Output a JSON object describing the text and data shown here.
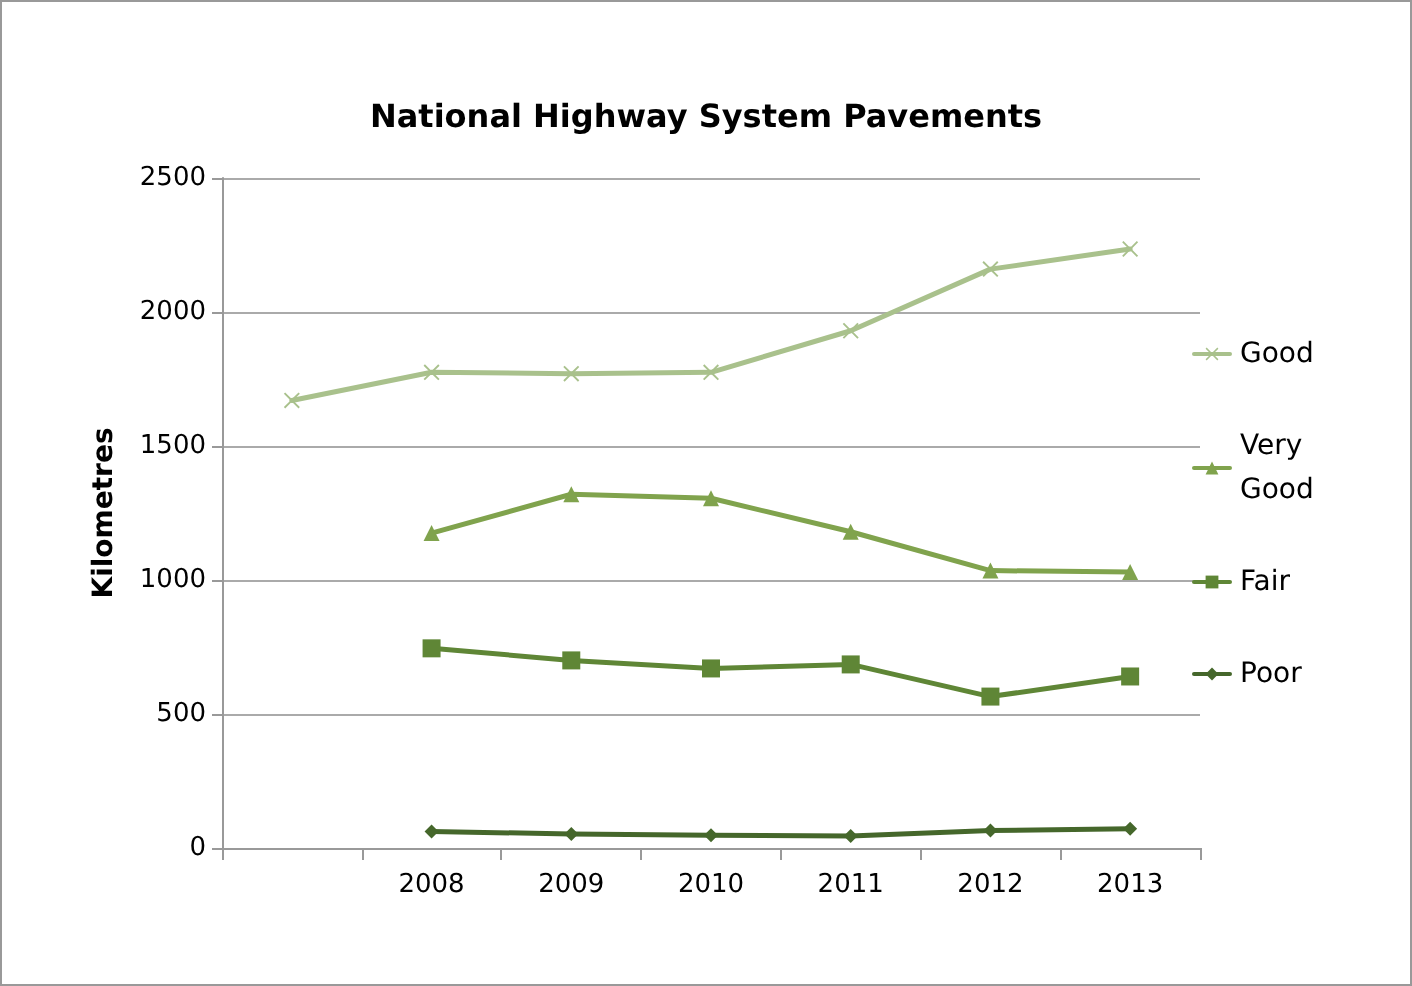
{
  "chart_data": {
    "type": "line",
    "title": "National Highway System Pavements",
    "ylabel": "Kilometres",
    "categories": [
      null,
      "2008",
      "2009",
      "2010",
      "2011",
      "2012",
      "2013"
    ],
    "series": [
      {
        "name": "Good",
        "color": "#a9c18c",
        "marker": "cross",
        "values": [
          1670,
          1775,
          1770,
          1775,
          1930,
          2160,
          2235
        ]
      },
      {
        "name": "Very Good",
        "color": "#80a34d",
        "marker": "triangle",
        "values": [
          null,
          1175,
          1320,
          1305,
          1180,
          1035,
          1030
        ]
      },
      {
        "name": "Fair",
        "color": "#5f8636",
        "marker": "square",
        "values": [
          null,
          745,
          700,
          670,
          685,
          565,
          640
        ]
      },
      {
        "name": "Poor",
        "color": "#45672b",
        "marker": "diamond",
        "values": [
          null,
          62,
          52,
          48,
          45,
          65,
          72
        ]
      }
    ],
    "ylim": [
      0,
      2500
    ],
    "yticks": [
      0,
      500,
      1000,
      1500,
      2000,
      2500
    ],
    "grid": "y",
    "legend": "right"
  }
}
